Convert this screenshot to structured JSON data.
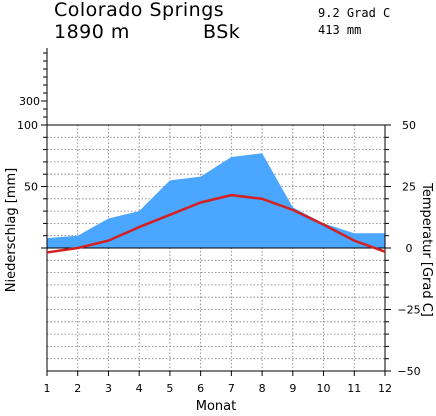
{
  "header": {
    "station": "Colorado Springs",
    "elevation": "1890 m",
    "climate_class": "BSk",
    "annual_temperature": "9.2 Grad C",
    "annual_precipitation": "413 mm"
  },
  "colors": {
    "precipitation_fill": "#4aa6ff",
    "temperature_line": "#d42020",
    "grid": "#7a7a7a"
  },
  "chart_data": {
    "type": "area",
    "title": "Colorado Springs",
    "xlabel": "Monat",
    "ylabel_left": "Niederschlag [mm]",
    "ylabel_right": "Temperatur [Grad C]",
    "x": [
      1,
      2,
      3,
      4,
      5,
      6,
      7,
      8,
      9,
      10,
      11,
      12
    ],
    "x_ticks": [
      "1",
      "2",
      "3",
      "4",
      "5",
      "6",
      "7",
      "8",
      "9",
      "10",
      "11",
      "12"
    ],
    "precip_ticks_lower": [
      "50",
      "100"
    ],
    "precip_ticks_upper": [
      "300"
    ],
    "temp_ticks": [
      "50",
      "25",
      "0",
      "−25",
      "−50"
    ],
    "precip_ylim": [
      0,
      100
    ],
    "temp_ylim": [
      -50,
      50
    ],
    "grid": true,
    "series": [
      {
        "name": "Niederschlag",
        "axis": "left",
        "unit": "mm",
        "values": [
          8,
          10,
          24,
          30,
          55,
          58,
          74,
          77,
          33,
          20,
          12,
          12
        ]
      },
      {
        "name": "Temperatur",
        "axis": "right",
        "unit": "Grad C",
        "values": [
          -1.8,
          0,
          3,
          8.5,
          13.5,
          18.5,
          21.5,
          20,
          15.5,
          9.5,
          3,
          -1.5
        ]
      }
    ]
  }
}
